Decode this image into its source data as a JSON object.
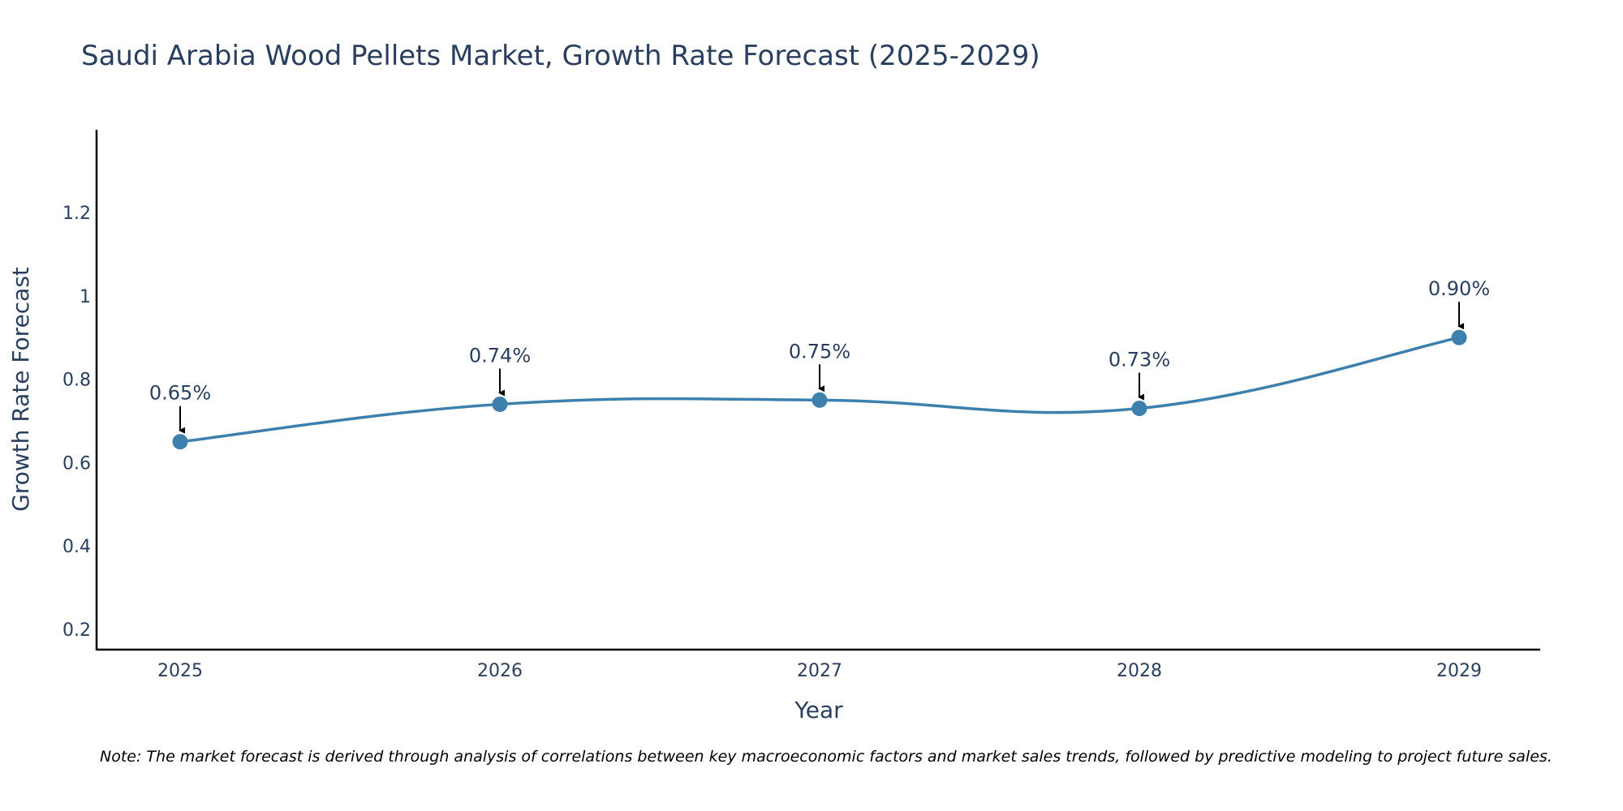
{
  "chart_data": {
    "type": "line",
    "title": "Saudi Arabia Wood Pellets Market, Growth Rate Forecast (2025-2029)",
    "xlabel": "Year",
    "ylabel": "Growth Rate Forecast",
    "x": [
      "2025",
      "2026",
      "2027",
      "2028",
      "2029"
    ],
    "values": [
      0.65,
      0.74,
      0.75,
      0.73,
      0.9
    ],
    "data_labels": [
      "0.65%",
      "0.74%",
      "0.75%",
      "0.73%",
      "0.90%"
    ],
    "yticks": [
      0.2,
      0.4,
      0.6,
      0.8,
      1,
      1.2
    ],
    "ytick_labels": [
      "0.2",
      "0.4",
      "0.6",
      "0.8",
      "1",
      "1.2"
    ],
    "ylim": [
      0.15,
      1.4
    ],
    "grid": false,
    "line_color": "#3d7fad",
    "annotation_arrow_color": "#000000",
    "note": "Note: The market forecast is derived through analysis of correlations between key macroeconomic factors and market sales trends, followed by predictive modeling to project future sales."
  }
}
